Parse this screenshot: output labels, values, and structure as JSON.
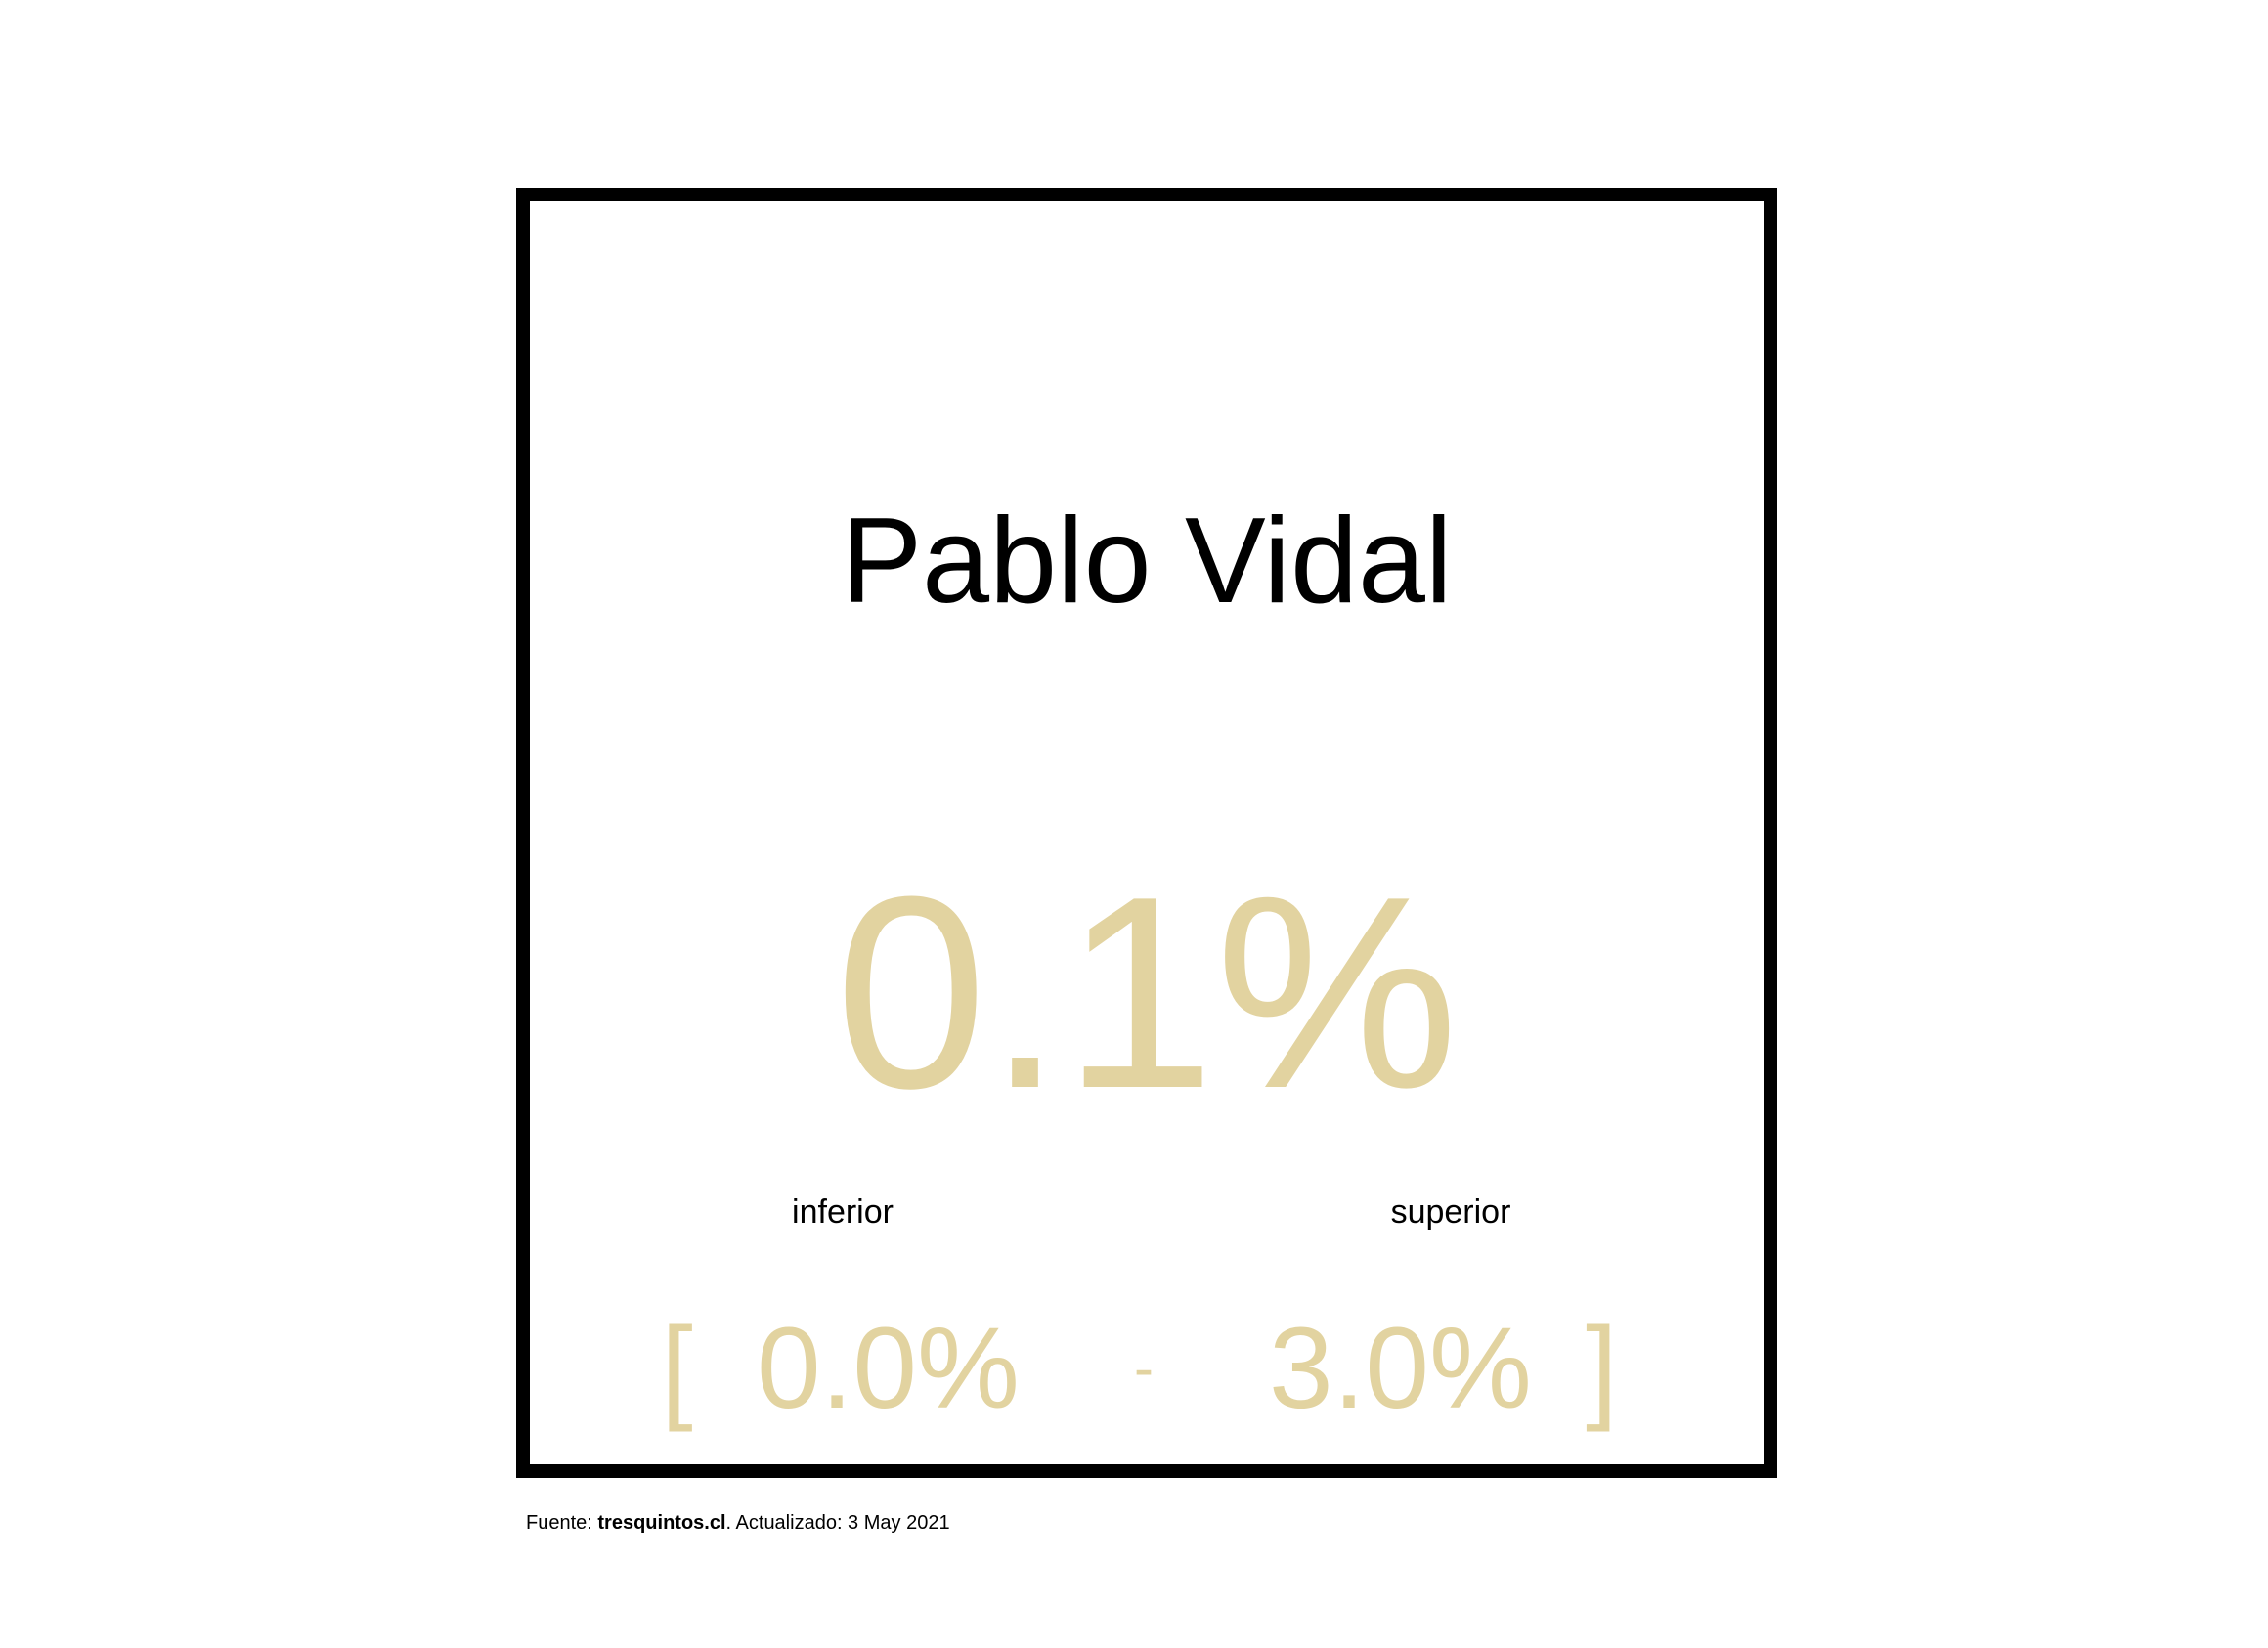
{
  "card": {
    "title": "Pablo Vidal",
    "value": "0.1%",
    "accent_color": "#e2d3a0",
    "border_color": "#000000"
  },
  "range": {
    "lower_label": "inferior",
    "upper_label": "superior",
    "open_bracket": "[",
    "lower_value": "0.0%",
    "separator": "-",
    "upper_value": "3.0%",
    "close_bracket": "]"
  },
  "footer": {
    "prefix": "Fuente: ",
    "source": "tresquintos.cl",
    "suffix": ". Actualizado: 3 May 2021"
  }
}
